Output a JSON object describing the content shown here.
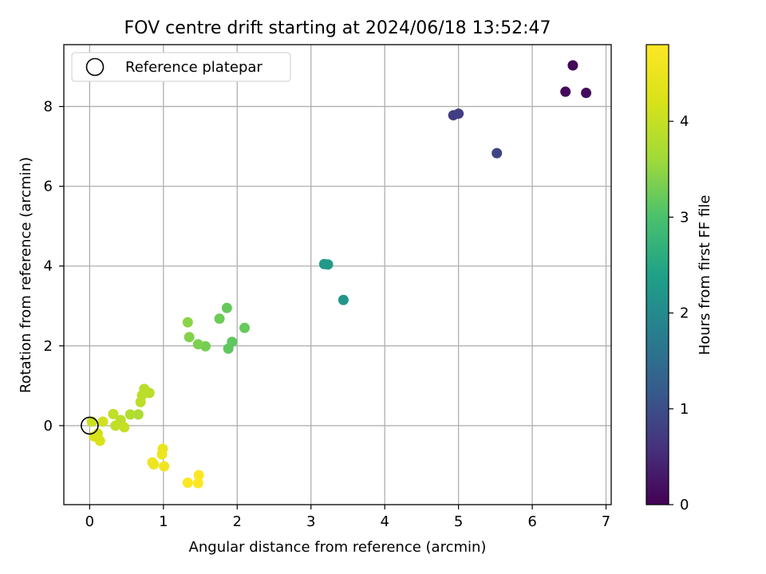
{
  "chart_data": {
    "type": "scatter",
    "title": "FOV centre drift starting at 2024/06/18 13:52:47",
    "xlabel": "Angular distance from reference (arcmin)",
    "ylabel": "Rotation from reference (arcmin)",
    "xlim": [
      -0.35,
      7.07
    ],
    "ylim": [
      -1.98,
      9.55
    ],
    "xticks": [
      0,
      1,
      2,
      3,
      4,
      5,
      6,
      7
    ],
    "yticks": [
      0,
      2,
      4,
      6,
      8
    ],
    "grid": true,
    "legend": {
      "placement": "upper-left",
      "entries": [
        "Reference platepar"
      ]
    },
    "reference_marker": {
      "x": 0,
      "y": 0,
      "style": "hollow circle"
    },
    "colorbar": {
      "label": "Hours from first FF file",
      "colormap": "viridis",
      "range": [
        0,
        4.8
      ],
      "ticks": [
        0,
        1,
        2,
        3,
        4
      ]
    },
    "points": [
      {
        "x": 6.55,
        "y": 9.03,
        "h": 0.05
      },
      {
        "x": 6.45,
        "y": 8.37,
        "h": 0.1
      },
      {
        "x": 6.73,
        "y": 8.34,
        "h": 0.12
      },
      {
        "x": 4.93,
        "y": 7.78,
        "h": 0.75
      },
      {
        "x": 5.0,
        "y": 7.82,
        "h": 0.78
      },
      {
        "x": 5.52,
        "y": 6.83,
        "h": 0.85
      },
      {
        "x": 3.18,
        "y": 4.05,
        "h": 2.25
      },
      {
        "x": 3.23,
        "y": 4.04,
        "h": 2.28
      },
      {
        "x": 3.44,
        "y": 3.15,
        "h": 2.2
      },
      {
        "x": 1.86,
        "y": 2.95,
        "h": 3.2
      },
      {
        "x": 1.76,
        "y": 2.68,
        "h": 3.25
      },
      {
        "x": 2.1,
        "y": 2.45,
        "h": 3.2
      },
      {
        "x": 1.93,
        "y": 2.1,
        "h": 3.15
      },
      {
        "x": 1.88,
        "y": 1.93,
        "h": 3.15
      },
      {
        "x": 1.57,
        "y": 1.99,
        "h": 3.3
      },
      {
        "x": 1.47,
        "y": 2.04,
        "h": 3.35
      },
      {
        "x": 1.35,
        "y": 2.22,
        "h": 3.4
      },
      {
        "x": 1.33,
        "y": 2.59,
        "h": 3.45
      },
      {
        "x": 0.74,
        "y": 0.92,
        "h": 3.85
      },
      {
        "x": 0.81,
        "y": 0.82,
        "h": 3.88
      },
      {
        "x": 0.71,
        "y": 0.76,
        "h": 3.9
      },
      {
        "x": 0.69,
        "y": 0.59,
        "h": 3.92
      },
      {
        "x": 0.66,
        "y": 0.28,
        "h": 3.75
      },
      {
        "x": 0.55,
        "y": 0.28,
        "h": 3.8
      },
      {
        "x": 0.32,
        "y": 0.29,
        "h": 3.95
      },
      {
        "x": 0.42,
        "y": 0.14,
        "h": 3.9
      },
      {
        "x": 0.35,
        "y": 0.0,
        "h": 3.95
      },
      {
        "x": 0.47,
        "y": -0.04,
        "h": 4.0
      },
      {
        "x": 0.18,
        "y": 0.1,
        "h": 4.1
      },
      {
        "x": 0.03,
        "y": 0.1,
        "h": 4.05
      },
      {
        "x": 0.11,
        "y": -0.2,
        "h": 4.15
      },
      {
        "x": 0.06,
        "y": -0.27,
        "h": 4.2
      },
      {
        "x": 0.14,
        "y": -0.38,
        "h": 4.22
      },
      {
        "x": 0.99,
        "y": -0.58,
        "h": 4.5
      },
      {
        "x": 0.98,
        "y": -0.72,
        "h": 4.52
      },
      {
        "x": 0.85,
        "y": -0.92,
        "h": 4.55
      },
      {
        "x": 0.87,
        "y": -0.97,
        "h": 4.56
      },
      {
        "x": 1.01,
        "y": -1.02,
        "h": 4.6
      },
      {
        "x": 1.48,
        "y": -1.24,
        "h": 4.75
      },
      {
        "x": 1.33,
        "y": -1.43,
        "h": 4.78
      },
      {
        "x": 1.47,
        "y": -1.44,
        "h": 4.8
      }
    ]
  }
}
